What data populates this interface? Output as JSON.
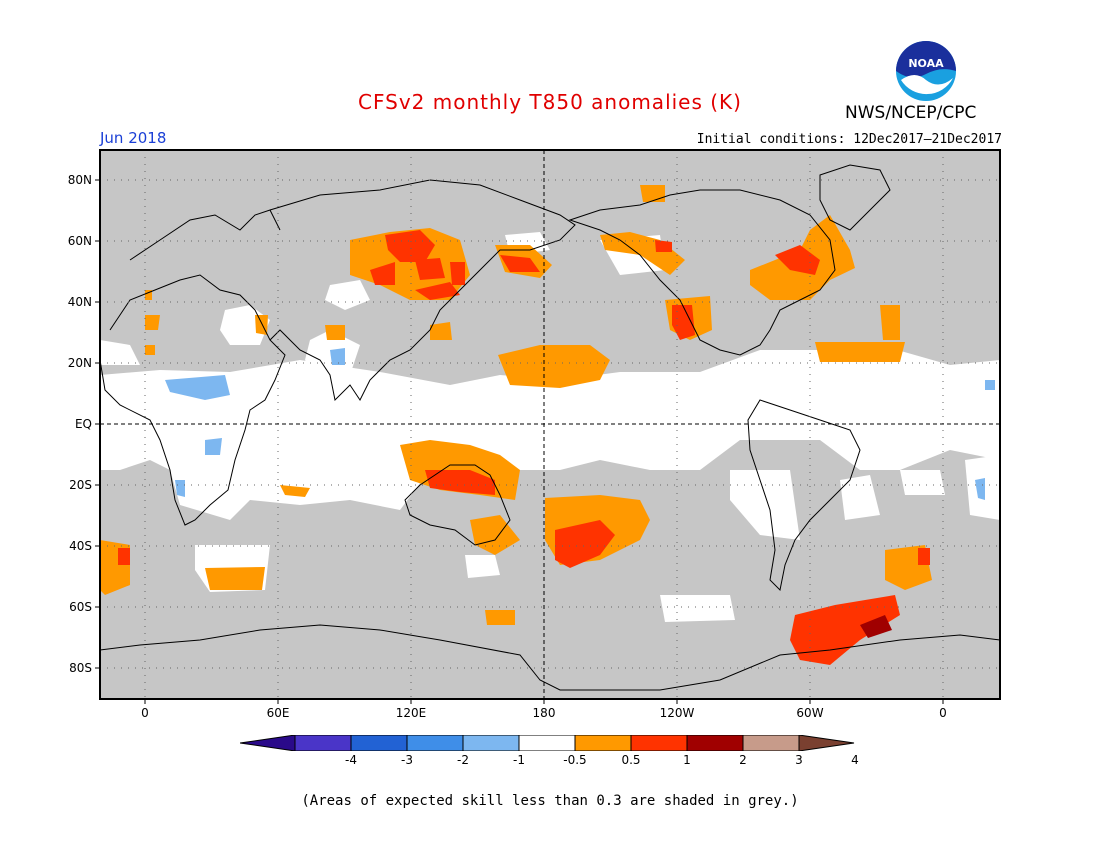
{
  "header": {
    "title": "CFSv2 monthly T850 anomalies (K)",
    "org": "NWS/NCEP/CPC",
    "month": "Jun 2018",
    "initial_conditions": "Initial conditions: 12Dec2017–21Dec2017",
    "logo_text": "NOAA"
  },
  "axes": {
    "lat_ticks": [
      "80N",
      "60N",
      "40N",
      "20N",
      "EQ",
      "20S",
      "40S",
      "60S",
      "80S"
    ],
    "lon_ticks": [
      "0",
      "60E",
      "120E",
      "180",
      "120W",
      "60W",
      "0"
    ]
  },
  "legend": {
    "labels": [
      "-4",
      "-3",
      "-2",
      "-1",
      "-0.5",
      "0.5",
      "1",
      "2",
      "3",
      "4"
    ],
    "colors": [
      "#2a0a8a",
      "#4a35c8",
      "#2262d4",
      "#3f8ee8",
      "#7db7f0",
      "#ffffff",
      "#ff9900",
      "#ff3300",
      "#a00000",
      "#c79b8a",
      "#7a4030"
    ]
  },
  "footnote": "(Areas of expected skill less than 0.3 are shaded in grey.)",
  "colors": {
    "skill_grey": "#c6c6c6",
    "positive_weak": "#ff9900",
    "positive_mid": "#ff3300",
    "positive_strong": "#a00000",
    "negative_weak": "#7db7f0"
  }
}
